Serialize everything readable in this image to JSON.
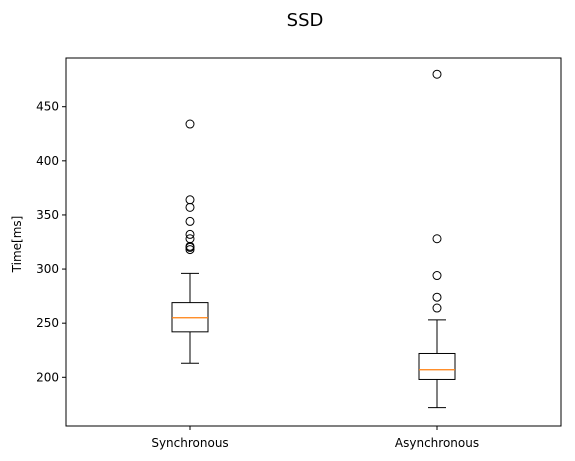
{
  "chart_data": {
    "type": "boxplot",
    "title": "SSD",
    "xlabel": "",
    "ylabel": "Time[ms]",
    "ylim": [
      155,
      495
    ],
    "yticks": [
      200,
      250,
      300,
      350,
      400,
      450
    ],
    "grid": false,
    "colors": {
      "box": "#000000",
      "median": "#ff7f0e",
      "frame": "#000000"
    },
    "categories": [
      "Synchronous",
      "Asynchronous"
    ],
    "boxes": [
      {
        "label": "Synchronous",
        "whisker_low": 213,
        "q1": 242,
        "median": 255,
        "q3": 269,
        "whisker_high": 296,
        "outliers": [
          318,
          320,
          321,
          328,
          332,
          344,
          357,
          364,
          434
        ]
      },
      {
        "label": "Asynchronous",
        "whisker_low": 172,
        "q1": 198,
        "median": 207,
        "q3": 222,
        "whisker_high": 253,
        "outliers": [
          264,
          274,
          294,
          328,
          480
        ]
      }
    ]
  }
}
